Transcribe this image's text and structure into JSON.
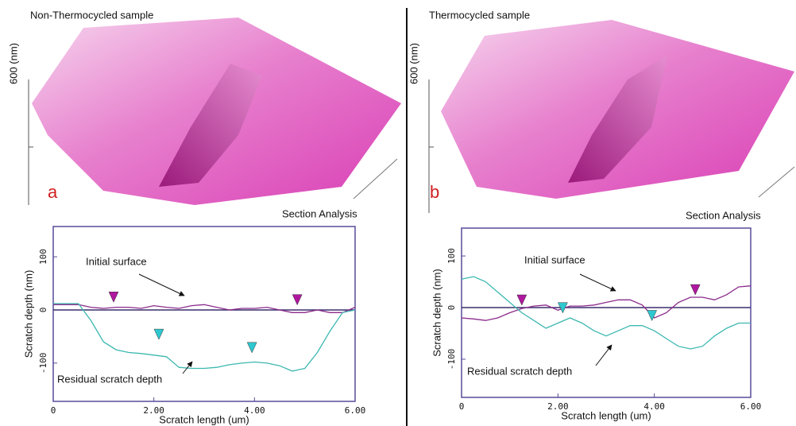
{
  "chart_data": [
    {
      "type": "line",
      "title": "Non-Thermocycled sample",
      "panel_label": "a",
      "image_axis_label": "600 (nm)",
      "section_title": "Section Analysis",
      "x_label": "Scratch length (um)",
      "y_label": "Scratch depth (nm)",
      "x": [
        0,
        0.25,
        0.5,
        0.75,
        1,
        1.25,
        1.5,
        1.75,
        2,
        2.25,
        2.5,
        2.75,
        3,
        3.25,
        3.5,
        3.75,
        4,
        4.25,
        4.5,
        4.75,
        5,
        5.25,
        5.5,
        5.75,
        6
      ],
      "series": [
        {
          "name": "Initial surface",
          "color": "#8b2a8b",
          "values": [
            10,
            10,
            10,
            5,
            3,
            5,
            5,
            3,
            8,
            5,
            3,
            8,
            10,
            5,
            0,
            3,
            3,
            5,
            0,
            -5,
            -5,
            0,
            -5,
            -5,
            5
          ]
        },
        {
          "name": "Residual scratch depth",
          "color": "#3cb8b0",
          "values": [
            12,
            12,
            12,
            -20,
            -60,
            -75,
            -80,
            -82,
            -85,
            -88,
            -108,
            -110,
            -110,
            -108,
            -103,
            -100,
            -98,
            -100,
            -105,
            -115,
            -110,
            -80,
            -40,
            -5,
            0
          ]
        }
      ],
      "cursors": [
        {
          "x": 1.2,
          "y": 10,
          "color": "#b0179f"
        },
        {
          "x": 4.85,
          "y": 5,
          "color": "#b0179f"
        },
        {
          "x": 2.1,
          "y": -60,
          "color": "#2ec8d0"
        },
        {
          "x": 3.95,
          "y": -85,
          "color": "#2ec8d0"
        }
      ],
      "reference_line": 0,
      "xlim": [
        0,
        6
      ],
      "xticks": [
        0,
        {
          "value": 2,
          "label": "2.00"
        },
        {
          "value": 4,
          "label": "4.00"
        },
        {
          "value": 6,
          "label": "6.00"
        }
      ],
      "ylim": [
        -172,
        157
      ],
      "yticks": [
        -100,
        0,
        100
      ]
    },
    {
      "type": "line",
      "title": "Thermocycled sample",
      "panel_label": "b",
      "image_axis_label": "600 (nm)",
      "section_title": "Section Analysis",
      "x_label": "Scratch length (um)",
      "y_label": "Scratch depth (nm)",
      "x": [
        0,
        0.25,
        0.5,
        0.75,
        1,
        1.25,
        1.5,
        1.75,
        2,
        2.25,
        2.5,
        2.75,
        3,
        3.25,
        3.5,
        3.75,
        4,
        4.25,
        4.5,
        4.75,
        5,
        5.25,
        5.5,
        5.75,
        6
      ],
      "series": [
        {
          "name": "Initial surface",
          "color": "#8b2a8b",
          "values": [
            -20,
            -22,
            -25,
            -20,
            -10,
            -2,
            3,
            5,
            -5,
            3,
            3,
            5,
            10,
            15,
            15,
            5,
            -20,
            -10,
            10,
            20,
            20,
            15,
            25,
            40,
            42
          ]
        },
        {
          "name": "Residual scratch depth",
          "color": "#3cb8b0",
          "values": [
            55,
            60,
            50,
            30,
            10,
            -10,
            -25,
            -40,
            -30,
            -20,
            -30,
            -45,
            -55,
            -45,
            -35,
            -35,
            -45,
            -60,
            -75,
            -80,
            -75,
            -55,
            -40,
            -30,
            -30
          ]
        }
      ],
      "cursors": [
        {
          "x": 1.25,
          "y": 0,
          "color": "#b0179f"
        },
        {
          "x": 4.85,
          "y": 20,
          "color": "#b0179f"
        },
        {
          "x": 2.1,
          "y": -15,
          "color": "#2ec8d0"
        },
        {
          "x": 3.95,
          "y": -30,
          "color": "#2ec8d0"
        }
      ],
      "reference_line": 0,
      "xlim": [
        0,
        6
      ],
      "xticks": [
        0,
        {
          "value": 2,
          "label": "2.00"
        },
        {
          "value": 4,
          "label": "4.00"
        },
        {
          "value": 6,
          "label": "6.00"
        }
      ],
      "ylim": [
        -174,
        154
      ],
      "yticks": [
        -100,
        0,
        100
      ]
    }
  ]
}
